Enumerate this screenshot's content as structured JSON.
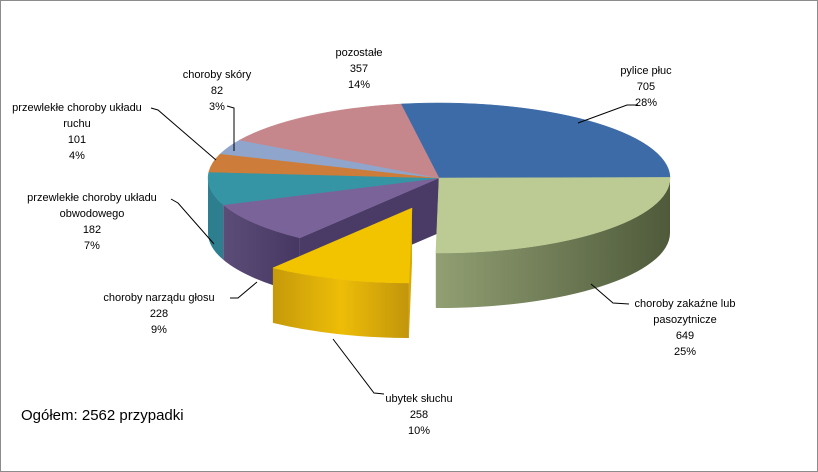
{
  "window": {
    "background": "#FFFFFF",
    "border_color": "#8C8C8C",
    "text_color": "#000000"
  },
  "chart_data": {
    "type": "pie",
    "three_d": true,
    "exploded_slice": "ubytek słuchu",
    "start_angle_deg": -9.5,
    "legend_position": "none",
    "total": 2562,
    "total_label": "Ogółem: 2562 przypadki",
    "categories": [
      "pylice płuc",
      "choroby zakaźne lub pasozytnicze",
      "ubytek słuchu",
      "choroby narządu głosu",
      "przewlekłe choroby układu obwodowego",
      "przewlekłe choroby układu ruchu",
      "choroby skóry",
      "pozostałe"
    ],
    "values": [
      705,
      649,
      258,
      228,
      182,
      101,
      82,
      357
    ],
    "slices": [
      {
        "label": "pylice płuc",
        "value": 705,
        "pct": "28%",
        "color": "#3D6BA7",
        "label_lines": [
          "pylice płuc",
          "705",
          "28%"
        ]
      },
      {
        "label": "choroby zakaźne lub pasozytnicze",
        "value": 649,
        "pct": "25%",
        "color": "#BCCB94",
        "side_light": "#919F73",
        "side_dark": "#4E5A3A",
        "cut": "#6E7A56",
        "label_lines": [
          "choroby zakaźne lub",
          "pasozytnicze",
          "649",
          "25%"
        ]
      },
      {
        "label": "ubytek słuchu",
        "value": 258,
        "pct": "10%",
        "exploded": true,
        "color": "#F2C400",
        "side_stops": [
          "#C6990B",
          "#EDBD07",
          "#C2950C"
        ],
        "cut": "#D9A905",
        "label_lines": [
          "ubytek słuchu",
          "258",
          "10%"
        ]
      },
      {
        "label": "choroby narządu głosu",
        "value": 228,
        "pct": "9%",
        "color": "#7A6399",
        "side_light": "#5C4C78",
        "side_dark": "#453762",
        "cut": "#4A3B66",
        "label_lines": [
          "choroby narządu głosu",
          "228",
          "9%"
        ]
      },
      {
        "label": "przewlekłe choroby układu obwodowego",
        "value": 182,
        "pct": "7%",
        "color": "#3595A4",
        "side": "#2D7E8F",
        "label_lines": [
          "przewlekłe choroby układu",
          "obwodowego",
          "182",
          "7%"
        ]
      },
      {
        "label": "przewlekłe choroby układu ruchu",
        "value": 101,
        "pct": "4%",
        "color": "#CD7C3A",
        "label_lines": [
          "przewlekłe choroby układu",
          "ruchu",
          "101",
          "4%"
        ]
      },
      {
        "label": "choroby skóry",
        "value": 82,
        "pct": "3%",
        "color": "#8FA5CB",
        "label_lines": [
          "choroby skóry",
          "82",
          "3%"
        ]
      },
      {
        "label": "pozostałe",
        "value": 357,
        "pct": "14%",
        "color": "#C5878C",
        "label_lines": [
          "pozostałe",
          "357",
          "14%"
        ]
      }
    ]
  }
}
